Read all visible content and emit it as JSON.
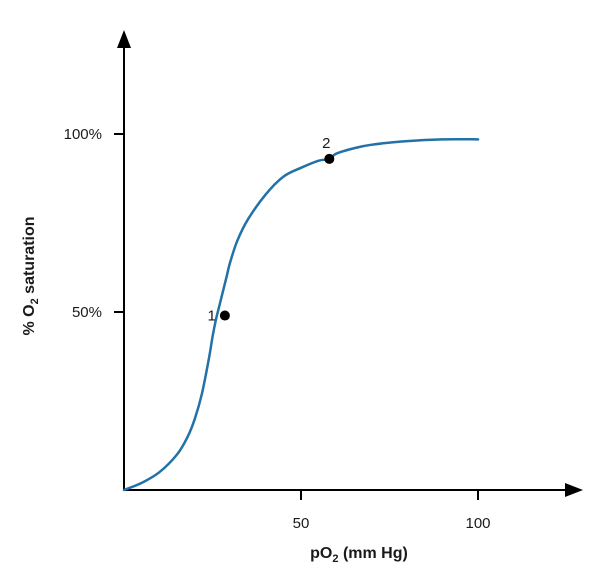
{
  "chart_data": {
    "type": "line",
    "title": "",
    "xlabel": {
      "parts": [
        {
          "text": "pO",
          "sub": false
        },
        {
          "text": "2",
          "sub": true
        },
        {
          "text": " (mm Hg)",
          "sub": false
        }
      ]
    },
    "ylabel": {
      "parts": [
        {
          "text": "% O",
          "sub": false
        },
        {
          "text": "2",
          "sub": true
        },
        {
          "text": " saturation",
          "sub": false
        }
      ]
    },
    "xlim": [
      0,
      120
    ],
    "ylim": [
      0,
      125
    ],
    "x_ticks": [
      {
        "value": 50,
        "label": "50"
      },
      {
        "value": 100,
        "label": "100"
      }
    ],
    "y_ticks": [
      {
        "value": 50,
        "label": "50%"
      },
      {
        "value": 100,
        "label": "100%"
      }
    ],
    "grid": false,
    "series": [
      {
        "color": "#2272a8",
        "x": [
          0,
          5,
          10,
          15,
          18,
          20,
          22,
          24,
          25,
          26,
          27,
          28,
          29,
          30,
          32,
          35,
          40,
          45,
          50,
          55,
          58,
          60,
          65,
          70,
          80,
          90,
          100
        ],
        "y": [
          0,
          2,
          5,
          10,
          15,
          20,
          27,
          37,
          43,
          48,
          52,
          56,
          60,
          64,
          70,
          76,
          83,
          88,
          90.5,
          92.5,
          93,
          94.5,
          96,
          97,
          98,
          98.5,
          98.5
        ]
      }
    ],
    "points": [
      {
        "label": "1",
        "x": 28.5,
        "y": 49,
        "label_side": "left"
      },
      {
        "label": "2",
        "x": 58,
        "y": 93,
        "label_side": "top"
      }
    ],
    "colors": {
      "axis": "#000000",
      "text": "#1a1a1a",
      "point": "#000000"
    }
  }
}
